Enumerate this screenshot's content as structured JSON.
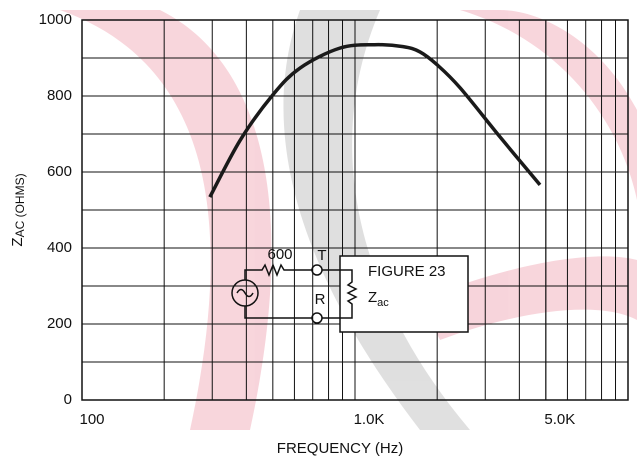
{
  "chart_data": {
    "type": "line",
    "x_label": "FREQUENCY (Hz)",
    "y_label": [
      "Z",
      "AC (OHMS)"
    ],
    "x": [
      294,
      380,
      500,
      630,
      880,
      1180,
      1500,
      1730,
      2000,
      2430,
      3400,
      4760
    ],
    "series": [
      {
        "color": "#1a1a1a",
        "values": [
          534,
          684,
          803,
          874,
          926,
          935,
          930,
          916,
          882,
          821,
          692,
          566
        ]
      }
    ],
    "xlim": [
      100,
      10000
    ],
    "xscale": "log",
    "xticks": [
      100,
      {
        "value": 1000,
        "label": "1.0K"
      },
      {
        "value": 5000,
        "label": "5.0K"
      }
    ],
    "ylim": [
      0,
      1000
    ],
    "yticks": [
      0,
      200,
      400,
      600,
      800,
      1000
    ],
    "grid": true,
    "inset": {
      "resistor": "600",
      "tip": "T",
      "ring": "R",
      "figure": "FIGURE 23",
      "impedance": [
        "Z",
        "ac"
      ]
    }
  }
}
